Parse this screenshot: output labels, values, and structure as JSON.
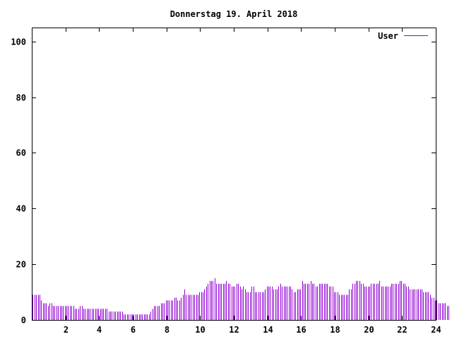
{
  "chart_data": {
    "type": "bar",
    "title": "Donnerstag 19. April 2018",
    "xlabel": "",
    "ylabel": "",
    "xlim": [
      0,
      24
    ],
    "ylim": [
      0,
      105
    ],
    "x_ticks": [
      "2",
      "4",
      "6",
      "8",
      "10",
      "12",
      "14",
      "16",
      "18",
      "20",
      "22",
      "24"
    ],
    "y_ticks": [
      "0",
      "20",
      "40",
      "60",
      "80",
      "100"
    ],
    "grid": false,
    "legend_position": "top-right",
    "color": "#9400D3",
    "sample_interval_hours": 0.1,
    "series": [
      {
        "name": "User",
        "values": [
          9,
          9,
          9,
          9,
          9,
          7,
          6,
          6,
          6,
          5,
          6,
          6,
          5,
          5,
          5,
          5,
          5,
          5,
          5,
          5,
          5,
          5,
          5,
          5,
          5,
          4,
          4,
          4,
          5,
          5,
          4,
          4,
          4,
          4,
          4,
          4,
          4,
          4,
          4,
          4,
          4,
          4,
          4,
          4,
          4,
          3,
          3,
          3,
          3,
          3,
          3,
          3,
          3,
          3,
          2,
          2,
          2,
          2,
          2,
          2,
          2,
          2,
          2,
          2,
          2,
          2,
          2,
          2,
          2,
          2,
          3,
          4,
          5,
          5,
          5,
          5,
          6,
          6,
          6,
          7,
          7,
          7,
          7,
          7,
          8,
          8,
          7,
          7,
          8,
          9,
          11,
          9,
          9,
          9,
          9,
          9,
          9,
          9,
          9,
          10,
          10,
          10,
          11,
          12,
          13,
          14,
          14,
          14,
          15,
          13,
          13,
          13,
          13,
          13,
          13,
          14,
          13,
          13,
          12,
          12,
          12,
          13,
          13,
          12,
          11,
          12,
          11,
          10,
          10,
          10,
          12,
          12,
          10,
          10,
          10,
          10,
          10,
          10,
          11,
          12,
          12,
          12,
          12,
          11,
          11,
          11,
          12,
          13,
          12,
          12,
          12,
          12,
          12,
          12,
          11,
          10,
          10,
          11,
          11,
          11,
          14,
          13,
          13,
          13,
          13,
          14,
          13,
          13,
          12,
          12,
          13,
          13,
          13,
          13,
          13,
          13,
          12,
          12,
          12,
          10,
          10,
          10,
          9,
          9,
          9,
          9,
          9,
          9,
          11,
          11,
          13,
          13,
          14,
          14,
          14,
          13,
          13,
          12,
          12,
          12,
          12,
          13,
          13,
          13,
          13,
          13,
          14,
          12,
          12,
          12,
          12,
          12,
          12,
          13,
          13,
          13,
          13,
          13,
          14,
          14,
          13,
          13,
          12,
          12,
          11,
          11,
          11,
          11,
          11,
          11,
          11,
          11,
          10,
          10,
          10,
          10,
          9,
          8,
          8,
          7,
          7,
          6,
          6,
          6,
          6,
          6,
          5,
          5
        ]
      }
    ]
  }
}
